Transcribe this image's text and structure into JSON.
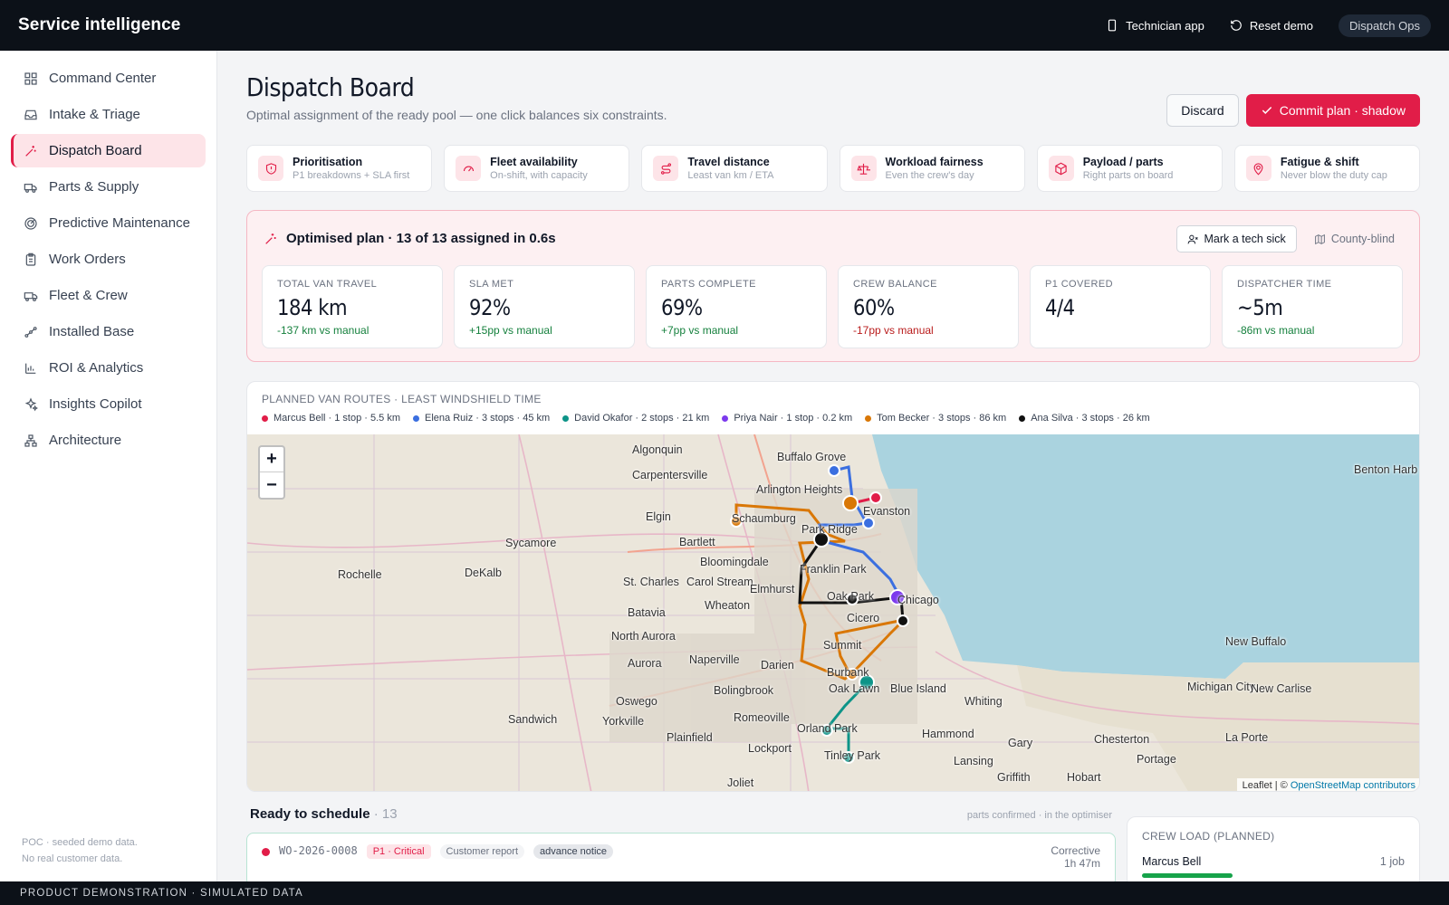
{
  "app": {
    "title": "Service intelligence"
  },
  "top_actions": {
    "technician_app": "Technician app",
    "reset_demo": "Reset demo",
    "role": "Dispatch Ops"
  },
  "sidebar": {
    "items": [
      {
        "label": "Command Center",
        "icon": "grid-icon"
      },
      {
        "label": "Intake & Triage",
        "icon": "inbox-icon"
      },
      {
        "label": "Dispatch Board",
        "icon": "wand-icon",
        "active": true
      },
      {
        "label": "Parts & Supply",
        "icon": "truck-icon"
      },
      {
        "label": "Predictive Maintenance",
        "icon": "radar-icon"
      },
      {
        "label": "Work Orders",
        "icon": "clipboard-icon"
      },
      {
        "label": "Fleet & Crew",
        "icon": "van-icon"
      },
      {
        "label": "Installed Base",
        "icon": "network-icon"
      },
      {
        "label": "ROI & Analytics",
        "icon": "bar-chart-icon"
      },
      {
        "label": "Insights Copilot",
        "icon": "sparkles-icon"
      },
      {
        "label": "Architecture",
        "icon": "hierarchy-icon"
      }
    ],
    "footer_line1": "POC · seeded demo data.",
    "footer_line2": "No real customer data."
  },
  "page": {
    "title": "Dispatch Board",
    "subtitle": "Optimal assignment of the ready pool — one click balances six constraints.",
    "discard": "Discard",
    "commit": "Commit plan · shadow"
  },
  "constraints": [
    {
      "title": "Prioritisation",
      "sub": "P1 breakdowns + SLA first",
      "icon": "shield-icon"
    },
    {
      "title": "Fleet availability",
      "sub": "On-shift, with capacity",
      "icon": "gauge-icon"
    },
    {
      "title": "Travel distance",
      "sub": "Least van km / ETA",
      "icon": "route-icon"
    },
    {
      "title": "Workload fairness",
      "sub": "Even the crew's day",
      "icon": "scale-icon"
    },
    {
      "title": "Payload / parts",
      "sub": "Right parts on board",
      "icon": "box-icon"
    },
    {
      "title": "Fatigue & shift",
      "sub": "Never blow the duty cap",
      "icon": "pin-icon"
    }
  ],
  "plan": {
    "headline": "Optimised plan · 13 of 13 assigned in 0.6s",
    "mark_sick": "Mark a tech sick",
    "county_blind": "County-blind",
    "kpis": [
      {
        "label": "TOTAL VAN TRAVEL",
        "value": "184 km",
        "delta": "-137 km vs manual",
        "tone": "good"
      },
      {
        "label": "SLA MET",
        "value": "92%",
        "delta": "+15pp vs manual",
        "tone": "good"
      },
      {
        "label": "PARTS COMPLETE",
        "value": "69%",
        "delta": "+7pp vs manual",
        "tone": "good"
      },
      {
        "label": "CREW BALANCE",
        "value": "60%",
        "delta": "-17pp vs manual",
        "tone": "bad"
      },
      {
        "label": "P1 COVERED",
        "value": "4/4",
        "delta": "",
        "tone": "good"
      },
      {
        "label": "DISPATCHER TIME",
        "value": "~5m",
        "delta": "-86m vs manual",
        "tone": "good"
      }
    ]
  },
  "map": {
    "title": "PLANNED VAN ROUTES · LEAST WINDSHIELD TIME",
    "legend": [
      {
        "label": "Marcus Bell · 1 stop · 5.5 km",
        "color": "#e11d48"
      },
      {
        "label": "Elena Ruiz · 3 stops · 45 km",
        "color": "#3b6fe0"
      },
      {
        "label": "David Okafor · 2 stops · 21 km",
        "color": "#0d9488"
      },
      {
        "label": "Priya Nair · 1 stop · 0.2 km",
        "color": "#7c3aed"
      },
      {
        "label": "Tom Becker · 3 stops · 86 km",
        "color": "#d97706"
      },
      {
        "label": "Ana Silva · 3 stops · 26 km",
        "color": "#111111"
      }
    ],
    "zoom_in": "+",
    "zoom_out": "−",
    "attrib_leaflet": "Leaflet | © ",
    "attrib_osm": "OpenStreetMap contributors",
    "places": [
      "Algonquin",
      "Buffalo Grove",
      "Carpentersville",
      "Arlington Heights",
      "Evanston",
      "Benton Harb",
      "Elgin",
      "Schaumburg",
      "Park Ridge",
      "Sycamore",
      "Bartlett",
      "Bloomingdale",
      "Rochelle",
      "DeKalb",
      "St. Charles",
      "Carol Stream",
      "Franklin Park",
      "Elmhurst",
      "Oak Park",
      "Chicago",
      "Batavia",
      "Wheaton",
      "Cicero",
      "North Aurora",
      "Aurora",
      "Naperville",
      "Summit",
      "Darien",
      "New Buffalo",
      "Bolingbrook",
      "Burbank",
      "Oak Lawn",
      "Oswego",
      "Michigan City",
      "New Carlise",
      "Sandwich",
      "Yorkville",
      "Romeoville",
      "Blue Island",
      "Whiting",
      "Orland Park",
      "Plainfield",
      "Hammond",
      "Gary",
      "Chesterton",
      "La Porte",
      "Lockport",
      "Tinley Park",
      "Lansing",
      "Portage",
      "Joliet",
      "Griffith",
      "Hobart"
    ]
  },
  "ready": {
    "title": "Ready to schedule",
    "count": " · 13",
    "note": "parts confirmed · in the optimiser",
    "row": {
      "id": "WO-2026-0008",
      "priority": "P1 · Critical",
      "source": "Customer report",
      "tag": "advance notice",
      "type": "Corrective",
      "eta": "1h 47m"
    }
  },
  "crew_load": {
    "title": "CREW LOAD (PLANNED)",
    "name": "Marcus Bell",
    "jobs": "1 job"
  },
  "footer": "PRODUCT DEMONSTRATION · SIMULATED DATA"
}
